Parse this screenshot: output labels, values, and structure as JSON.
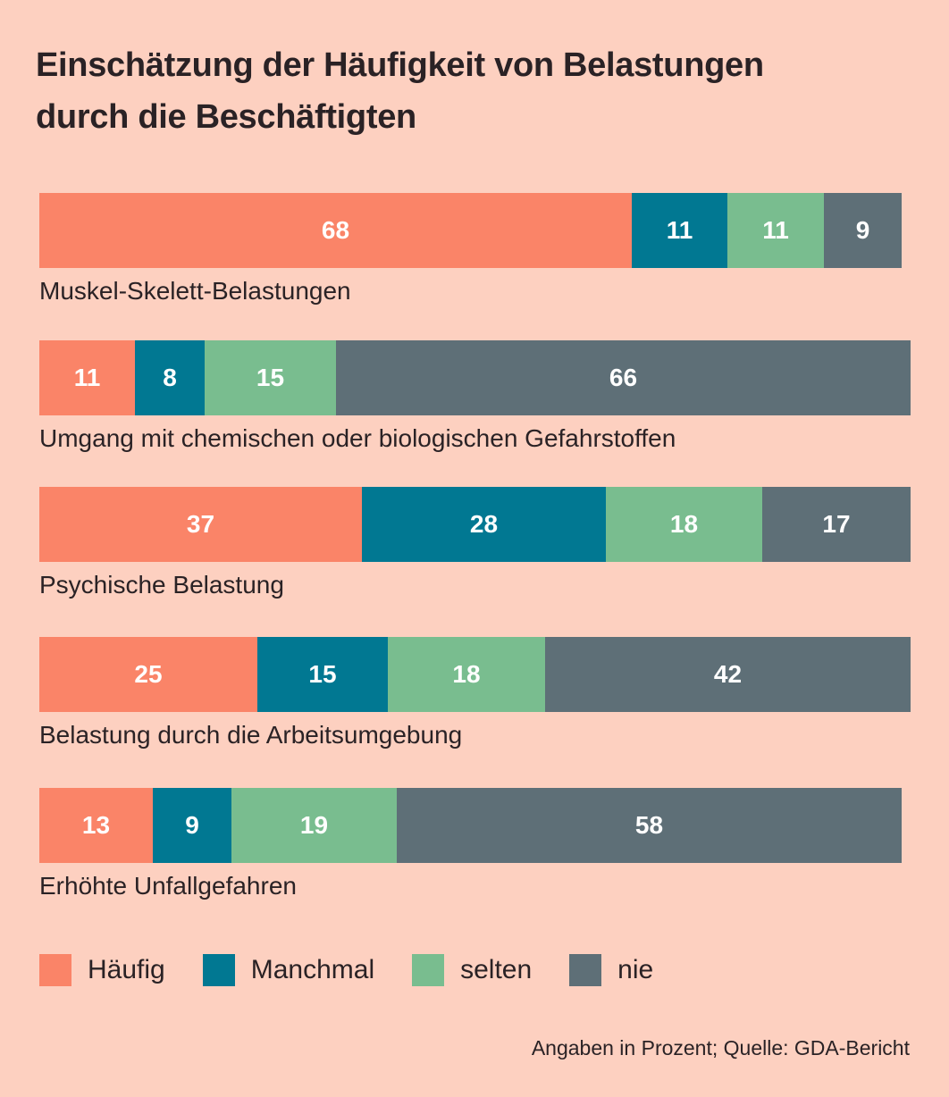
{
  "chart_data": {
    "type": "bar",
    "orientation": "horizontal",
    "stacked": true,
    "title": "Einschätzung der Häufigkeit von Belastungen durch die Beschäftigten",
    "title_lines": [
      "Einschätzung der Häufigkeit von Belastungen",
      "durch die Beschäftigten"
    ],
    "unit": "Prozent",
    "xlim": [
      0,
      100
    ],
    "grid": false,
    "legend_position": "bottom-left",
    "categories": [
      "Muskel-Skelett-Belastungen",
      "Umgang mit chemischen oder biologischen Gefahrstoffen",
      "Psychische Belastung",
      "Belastung durch die Arbeitsumgebung",
      "Erhöhte Unfallgefahren"
    ],
    "series": [
      {
        "name": "Häufig",
        "color": "#fa8468",
        "values": [
          68,
          11,
          37,
          25,
          13
        ]
      },
      {
        "name": "Manchmal",
        "color": "#017892",
        "values": [
          11,
          8,
          28,
          15,
          9
        ]
      },
      {
        "name": "selten",
        "color": "#79bd8f",
        "values": [
          11,
          15,
          18,
          18,
          19
        ]
      },
      {
        "name": "nie",
        "color": "#5e6f77",
        "values": [
          9,
          66,
          17,
          42,
          58
        ]
      }
    ],
    "footnote": "Angaben in Prozent; Quelle: GDA-Bericht"
  },
  "colors": {
    "background": "#fdd0c0",
    "text": "#2a2225",
    "bar_label": "#ffffff"
  }
}
